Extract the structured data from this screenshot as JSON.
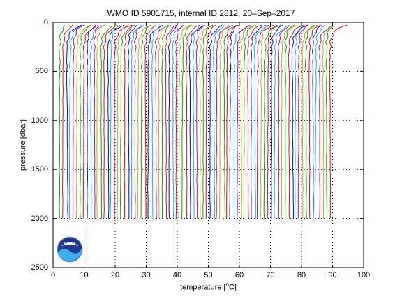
{
  "figure": {
    "title": "WMO ID 5901715, internal ID 2812, 20–Sep–2017",
    "colors": {
      "background": "#ffffff",
      "axes": "#000000",
      "grid": "#000000",
      "noaa_dark": "#1f3a93",
      "noaa_light": "#3ab0f0"
    },
    "logo": {
      "icon": "noaa-logo-icon",
      "text": "NOAA"
    }
  },
  "chart_data": {
    "type": "line",
    "title": "WMO ID 5901715, internal ID 2812, 20–Sep–2017",
    "xlabel_prefix": "temperature [",
    "xlabel_unit": "C]",
    "xlabel_degree": "o",
    "ylabel": "pressure [dbar]",
    "xlim": [
      0,
      100
    ],
    "ylim": [
      0,
      2500
    ],
    "y_reversed": true,
    "grid": true,
    "grid_style": "dotted",
    "xticks": [
      0,
      10,
      20,
      30,
      40,
      50,
      60,
      70,
      80,
      90,
      100
    ],
    "yticks": [
      0,
      500,
      1000,
      1500,
      2000,
      2500
    ],
    "xtick_labels": [
      "0",
      "10",
      "20",
      "30",
      "40",
      "50",
      "60",
      "70",
      "80",
      "90",
      "100"
    ],
    "ytick_labels": [
      "0",
      "500",
      "1000",
      "1500",
      "2000",
      "2500"
    ],
    "series_colors": [
      "#00aa00",
      "#ff0000",
      "#0000ff",
      "#00bfbf",
      "#bf00bf",
      "#d4a800"
    ],
    "profiles": {
      "count": 80,
      "first_deep_temperature": 2.2,
      "offset_step": 1.1,
      "pressure_range": [
        30,
        2000
      ],
      "surface_warming": 3.6,
      "deep_temperature_variation": 0.7,
      "pressure_levels": [
        30,
        45,
        60,
        80,
        100,
        130,
        160,
        200,
        250,
        300,
        350,
        400,
        450,
        500,
        600,
        700,
        800,
        900,
        1000,
        1100,
        1200,
        1300,
        1400,
        1500,
        1600,
        1700,
        1800,
        1900,
        2000
      ]
    }
  }
}
